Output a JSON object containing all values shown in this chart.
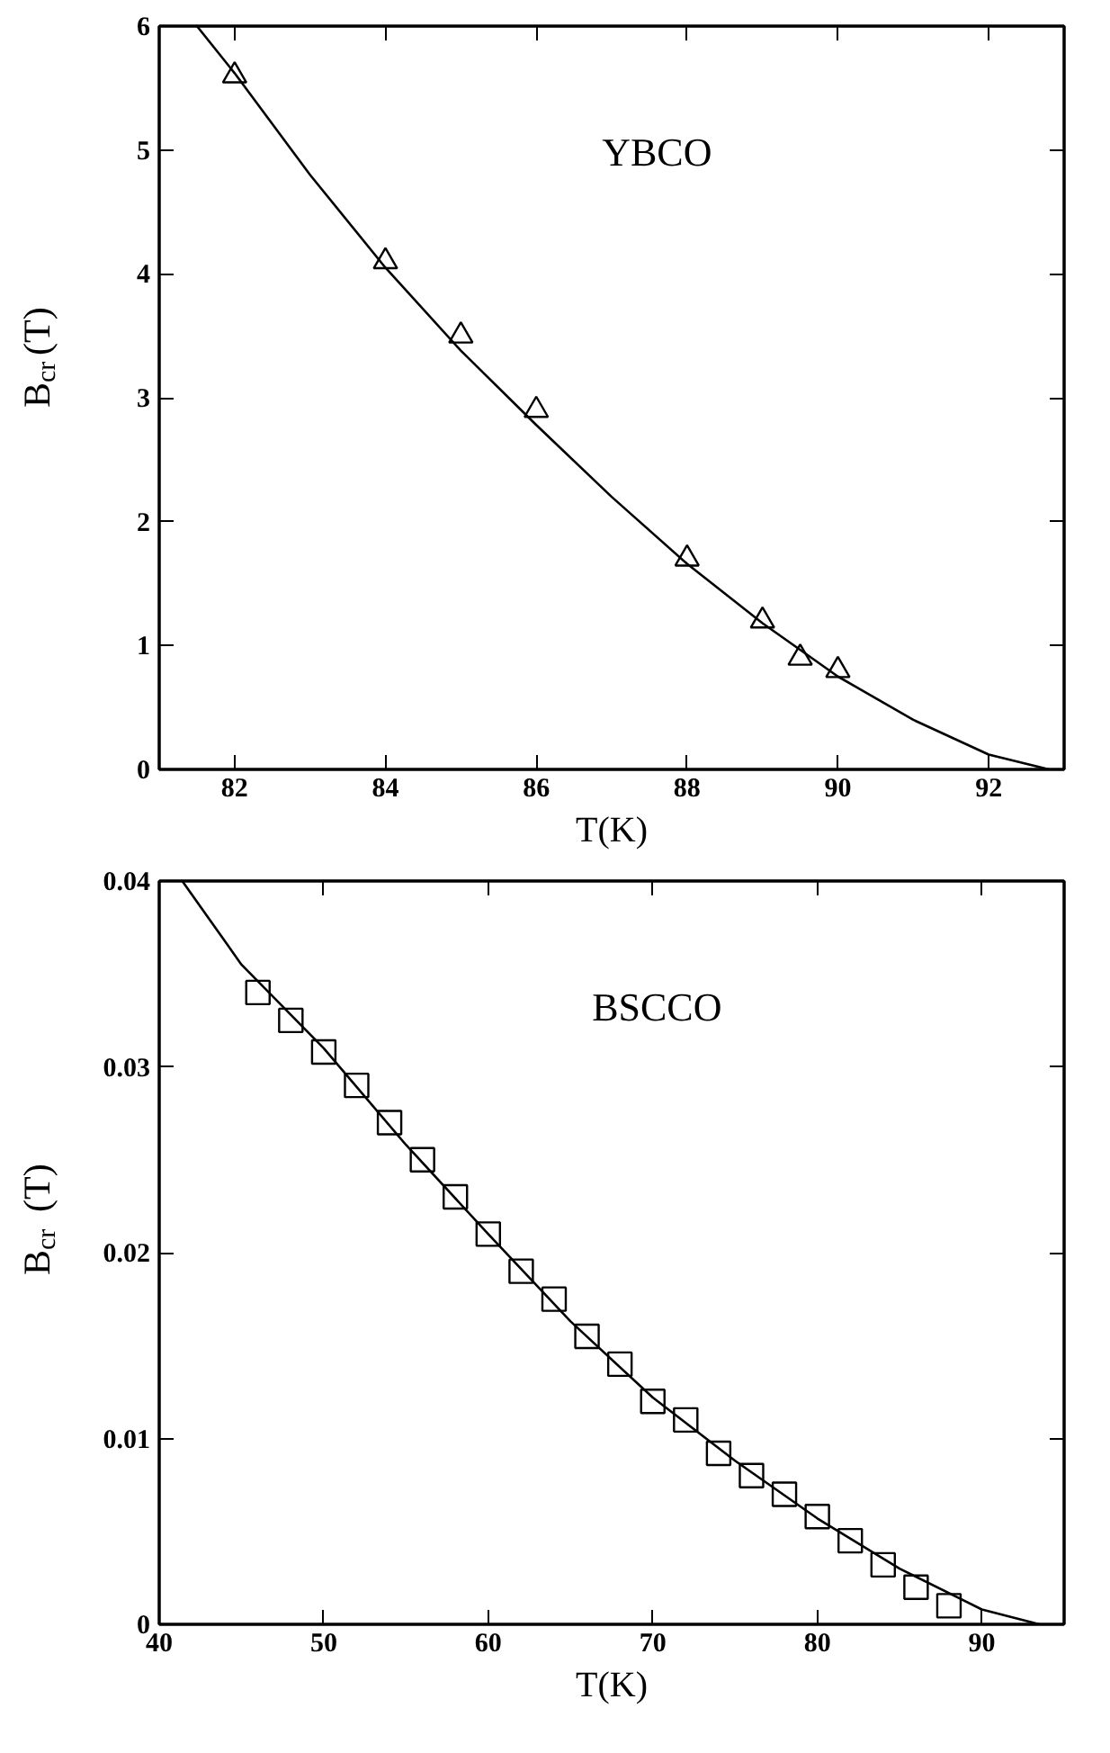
{
  "chart_data": [
    {
      "type": "scatter",
      "xlabel": "T(K)",
      "ylabel": "B$_{cr}$(T)",
      "annotations": [
        "YBCO"
      ],
      "xlim": [
        81,
        93
      ],
      "ylim": [
        0,
        6
      ],
      "xticks": [
        82,
        84,
        86,
        88,
        90,
        92
      ],
      "yticks": [
        0,
        1,
        2,
        3,
        4,
        5,
        6
      ],
      "grid": false,
      "series": [
        {
          "marker": "triangle",
          "color": "#000000",
          "x": [
            82,
            84,
            85,
            86,
            88,
            89,
            89.5,
            90
          ],
          "values": [
            5.6,
            4.1,
            3.5,
            2.9,
            1.7,
            1.2,
            0.9,
            0.8
          ]
        },
        {
          "type": "line",
          "marker": "none",
          "line_style": "solid",
          "color": "#000000",
          "x": [
            81.5,
            82,
            83,
            84,
            85,
            86,
            87,
            88,
            89,
            90,
            91,
            92,
            92.8
          ],
          "values": [
            6.0,
            5.62,
            4.8,
            4.05,
            3.38,
            2.78,
            2.2,
            1.66,
            1.18,
            0.75,
            0.4,
            0.12,
            0.0
          ]
        }
      ]
    },
    {
      "type": "scatter",
      "xlabel": "T(K)",
      "ylabel": "B$_{cr}$ (T)",
      "annotations": [
        "BSCCO"
      ],
      "xlim": [
        40,
        95
      ],
      "ylim": [
        0,
        0.04
      ],
      "xticks": [
        40,
        50,
        60,
        70,
        80,
        90
      ],
      "yticks": [
        0,
        0.01,
        0.02,
        0.03,
        0.04
      ],
      "grid": false,
      "series": [
        {
          "marker": "square",
          "color": "#000000",
          "x": [
            46,
            48,
            50,
            52,
            54,
            56,
            58,
            60,
            62,
            64,
            66,
            68,
            70,
            72,
            74,
            76,
            78,
            80,
            82,
            84,
            86,
            88
          ],
          "values": [
            0.034,
            0.0325,
            0.0308,
            0.029,
            0.027,
            0.025,
            0.023,
            0.021,
            0.019,
            0.0175,
            0.0155,
            0.014,
            0.012,
            0.011,
            0.0092,
            0.008,
            0.007,
            0.0058,
            0.0045,
            0.0032,
            0.002,
            0.001
          ]
        },
        {
          "type": "line",
          "marker": "none",
          "line_style": "solid",
          "color": "#000000",
          "x": [
            41.4,
            45,
            50,
            55,
            60,
            65,
            70,
            75,
            80,
            85,
            90,
            93.5
          ],
          "values": [
            0.04,
            0.0355,
            0.031,
            0.0258,
            0.021,
            0.0163,
            0.0122,
            0.0088,
            0.0057,
            0.003,
            0.0008,
            0.0
          ]
        }
      ]
    }
  ]
}
